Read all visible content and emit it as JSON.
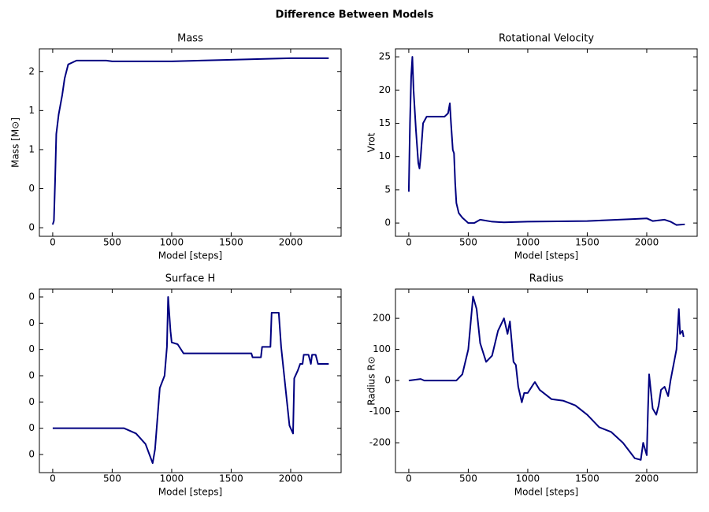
{
  "title": "Difference Between Models",
  "chart_data": [
    {
      "type": "line",
      "title": "Mass",
      "xlabel": "Model [steps]",
      "ylabel": "Mass [M⊙]",
      "x": [
        0,
        10,
        20,
        30,
        50,
        80,
        100,
        130,
        200,
        450,
        500,
        1000,
        1500,
        2000,
        2320
      ],
      "values": [
        0.04,
        0.09,
        0.6,
        1.2,
        1.45,
        1.7,
        1.91,
        2.09,
        2.14,
        2.14,
        2.13,
        2.13,
        2.15,
        2.17,
        2.17
      ],
      "color": "#000080",
      "xlim": [
        -112,
        2424
      ],
      "ylim": [
        -0.11,
        2.29
      ],
      "xticks": [
        0,
        500,
        1000,
        1500,
        2000
      ],
      "yticks": [
        0,
        {
          "value": 0.5,
          "label": "0"
        },
        1,
        {
          "value": 1.5,
          "label": "1"
        },
        2
      ]
    },
    {
      "type": "line",
      "title": "Rotational Velocity",
      "xlabel": "Model [steps]",
      "ylabel": "Vrot",
      "x": [
        0,
        10,
        20,
        30,
        40,
        60,
        80,
        90,
        100,
        120,
        150,
        200,
        300,
        330,
        345,
        355,
        370,
        380,
        390,
        400,
        420,
        450,
        500,
        550,
        600,
        700,
        800,
        1000,
        1500,
        1900,
        2000,
        2050,
        2150,
        2200,
        2250,
        2320
      ],
      "values": [
        4.7,
        15,
        22,
        25,
        20,
        14,
        9,
        8.2,
        10,
        15,
        16,
        16,
        16,
        16.5,
        18,
        15,
        11,
        10.5,
        6,
        3,
        1.5,
        0.8,
        0,
        0,
        0.5,
        0.2,
        0.1,
        0.2,
        0.3,
        0.6,
        0.7,
        0.3,
        0.5,
        0.2,
        -0.3,
        -0.2
      ],
      "color": "#000080",
      "xlim": [
        -112,
        2424
      ],
      "ylim": [
        -2.0,
        26.2
      ],
      "xticks": [
        0,
        500,
        1000,
        1500,
        2000
      ],
      "yticks": [
        0,
        5,
        10,
        15,
        20,
        25
      ]
    },
    {
      "type": "line",
      "title": "Surface H",
      "xlabel": "Model [steps]",
      "x": [
        0,
        600,
        700,
        780,
        840,
        860,
        900,
        940,
        960,
        970,
        990,
        1000,
        1050,
        1100,
        1670,
        1680,
        1750,
        1760,
        1830,
        1840,
        1900,
        1920,
        1990,
        2020,
        2030,
        2060,
        2080,
        2100,
        2110,
        2150,
        2170,
        2180,
        2210,
        2230,
        2320
      ],
      "values": [
        0,
        0,
        -0.002,
        -0.006,
        -0.0133,
        -0.008,
        0.0153,
        0.02,
        0.031,
        0.05,
        0.037,
        0.0327,
        0.032,
        0.0285,
        0.0285,
        0.027,
        0.027,
        0.031,
        0.031,
        0.044,
        0.044,
        0.031,
        0.001,
        -0.002,
        0.019,
        0.022,
        0.0245,
        0.0245,
        0.028,
        0.028,
        0.0245,
        0.028,
        0.028,
        0.0245,
        0.0245
      ],
      "color": "#000080",
      "xlim": [
        -112,
        2424
      ],
      "ylim": [
        -0.0169,
        0.053
      ],
      "xticks": [
        0,
        500,
        1000,
        1500,
        2000
      ],
      "yticks": [
        {
          "value": -0.01,
          "label": "0"
        },
        0,
        {
          "value": 0.01,
          "label": "0"
        },
        {
          "value": 0.02,
          "label": "0"
        },
        {
          "value": 0.03,
          "label": "0"
        },
        {
          "value": 0.04,
          "label": "0"
        },
        {
          "value": 0.05,
          "label": "0"
        }
      ]
    },
    {
      "type": "line",
      "title": "Radius",
      "xlabel": "Model [steps]",
      "ylabel": "Radius R⊙",
      "x": [
        0,
        100,
        130,
        400,
        450,
        500,
        540,
        570,
        600,
        650,
        700,
        750,
        800,
        830,
        850,
        880,
        900,
        920,
        950,
        970,
        1000,
        1050,
        1060,
        1100,
        1200,
        1300,
        1400,
        1500,
        1600,
        1700,
        1800,
        1900,
        1950,
        1970,
        2000,
        2010,
        2020,
        2050,
        2080,
        2100,
        2120,
        2150,
        2180,
        2200,
        2250,
        2270,
        2280,
        2300,
        2310
      ],
      "values": [
        0,
        5,
        0,
        0,
        20,
        100,
        270,
        230,
        120,
        60,
        80,
        160,
        200,
        150,
        190,
        60,
        50,
        -20,
        -70,
        -40,
        -40,
        -10,
        -5,
        -30,
        -60,
        -65,
        -80,
        -110,
        -150,
        -165,
        -200,
        -250,
        -255,
        -200,
        -240,
        -100,
        20,
        -90,
        -110,
        -80,
        -30,
        -20,
        -50,
        0,
        100,
        230,
        150,
        160,
        140
      ],
      "color": "#000080",
      "xlim": [
        -112,
        2424
      ],
      "ylim": [
        -296,
        294
      ],
      "xticks": [
        0,
        500,
        1000,
        1500,
        2000
      ],
      "yticks": [
        -200,
        -100,
        0,
        100,
        200
      ]
    }
  ]
}
